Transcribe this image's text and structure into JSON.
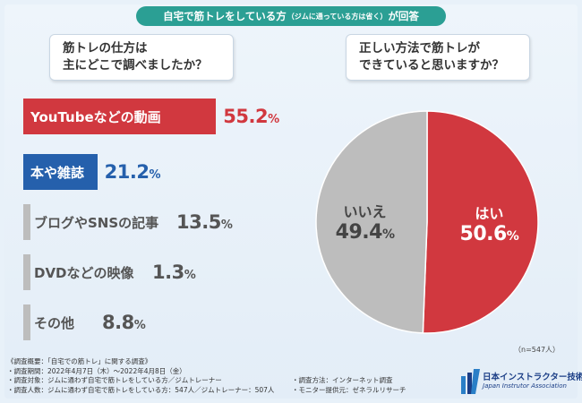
{
  "header": {
    "title_main": "自宅で筋トレをしている方",
    "title_small": "（ジムに通っている方は省く）",
    "title_tail": "が回答"
  },
  "question1": {
    "line1": "筋トレの仕方は",
    "line2": "主にどこで調べましたか？"
  },
  "question2": {
    "line1": "正しい方法で筋トレが",
    "line2": "できていると思いますか？"
  },
  "chart_data": [
    {
      "type": "bar",
      "orientation": "horizontal",
      "title": "筋トレの仕方は主にどこで調べましたか？",
      "percent_sign": "%",
      "categories": [
        "YouTubeなどの動画",
        "本や雑誌",
        "ブログやSNSの記事",
        "DVDなどの映像",
        "その他"
      ],
      "values": [
        55.2,
        21.2,
        13.5,
        1.3,
        8.8
      ],
      "value_labels": [
        "55.2",
        "21.2",
        "13.5",
        "1.3",
        "8.8"
      ],
      "xlim": [
        0,
        100
      ],
      "colors": [
        "#d1383f",
        "#2560ac",
        "#bdbdbd",
        "#bdbdbd",
        "#bdbdbd"
      ],
      "label_colors": [
        "#d1383f",
        "#2560ac",
        "#555555",
        "#555555",
        "#555555"
      ]
    },
    {
      "type": "pie",
      "title": "正しい方法で筋トレができていると思いますか？",
      "percent_sign": "%",
      "categories": [
        "はい",
        "いいえ"
      ],
      "values": [
        50.6,
        49.4
      ],
      "value_labels": [
        "50.6",
        "49.4"
      ],
      "colors": [
        "#d1383f",
        "#bdbdbd"
      ],
      "label_colors": [
        "#ffffff",
        "#444444"
      ]
    }
  ],
  "sample_size": "（n=547人）",
  "footnotes": {
    "overview": "《調査概要：「自宅での筋トレ」に関する調査》",
    "period": "・調査期間：2022年4月7日（木）〜2022年4月8日（金）",
    "target": "・調査対象：ジムに通わず自宅で筋トレをしている方／ジムトレーナー",
    "count": "・調査人数：ジムに通わず自宅で筋トレをしている方：547人／ジムトレーナー：507人",
    "method": "・調査方法：インターネット調査",
    "provider": "・モニター提供元：ゼネラルリサーチ"
  },
  "logo": {
    "name_jp": "日本インストラクター技術協会",
    "name_en": "Japan Instrutor Association",
    "brand_color": "#1b3e86"
  }
}
